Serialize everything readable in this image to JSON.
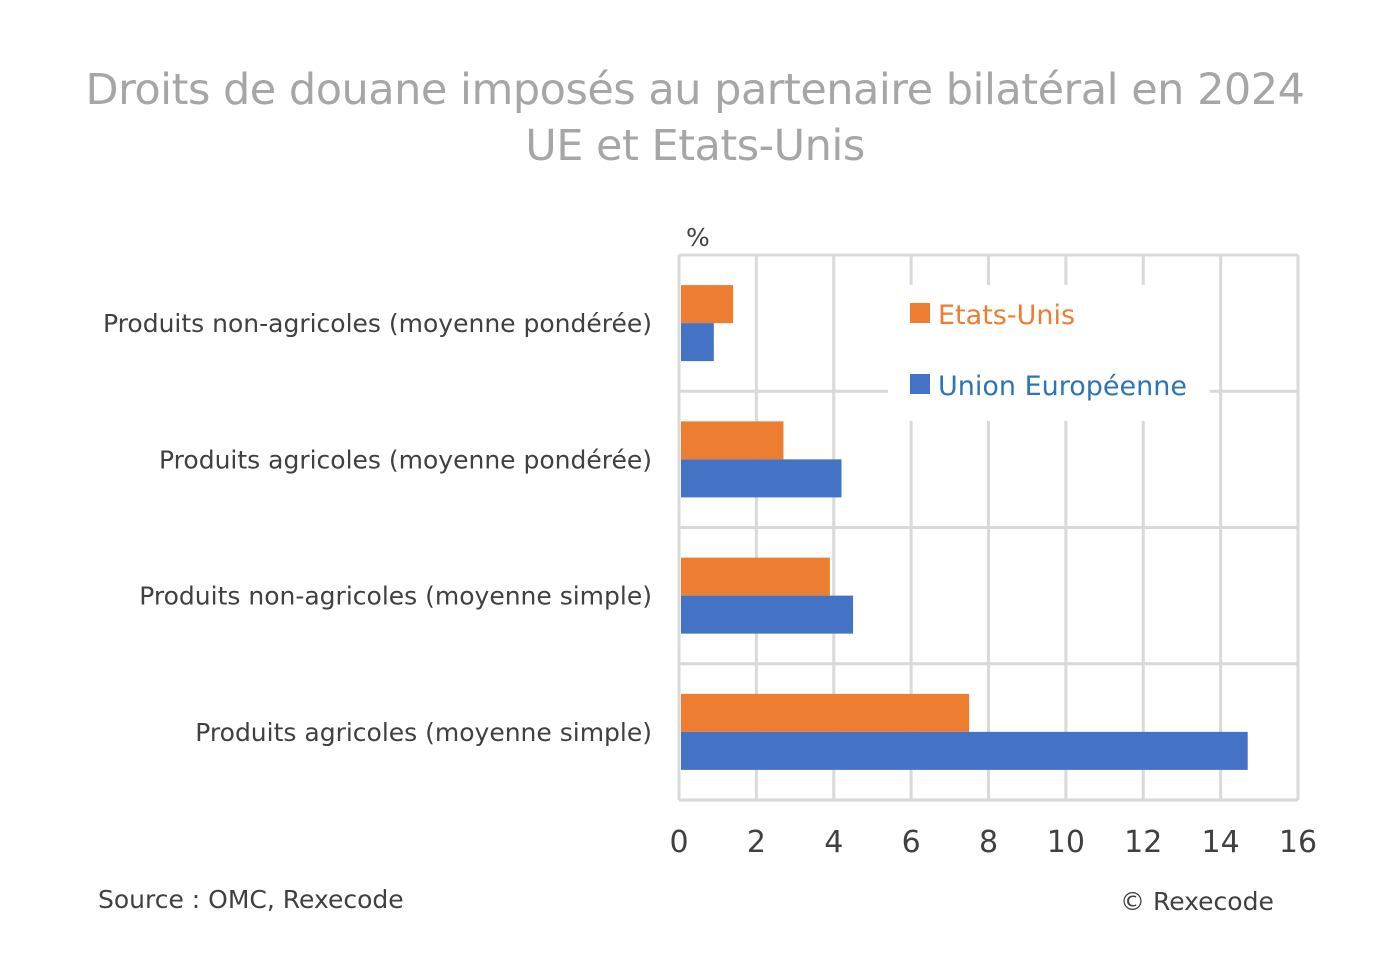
{
  "title": {
    "line1": "Droits de douane imposés au partenaire bilatéral en 2024",
    "line2": "UE et Etats-Unis"
  },
  "chart_data": {
    "type": "bar",
    "orientation": "horizontal",
    "unit": "%",
    "categories": [
      "Produits non-agricoles (moyenne pondérée)",
      "Produits agricoles (moyenne pondérée)",
      "Produits non-agricoles (moyenne simple)",
      "Produits agricoles (moyenne simple)"
    ],
    "series": [
      {
        "name": "Etats-Unis",
        "color": "#ed7d31",
        "values": [
          1.4,
          2.7,
          3.9,
          7.5
        ]
      },
      {
        "name": "Union Européenne",
        "color": "#4472c4",
        "values": [
          0.9,
          4.2,
          4.5,
          14.7
        ]
      }
    ],
    "xlim": [
      0,
      16
    ],
    "xticks": [
      0,
      2,
      4,
      6,
      8,
      10,
      12,
      14,
      16
    ],
    "grid": true,
    "legend_position": "top-right"
  },
  "footer": {
    "source": "Source : OMC, Rexecode",
    "copyright": "© Rexecode"
  }
}
